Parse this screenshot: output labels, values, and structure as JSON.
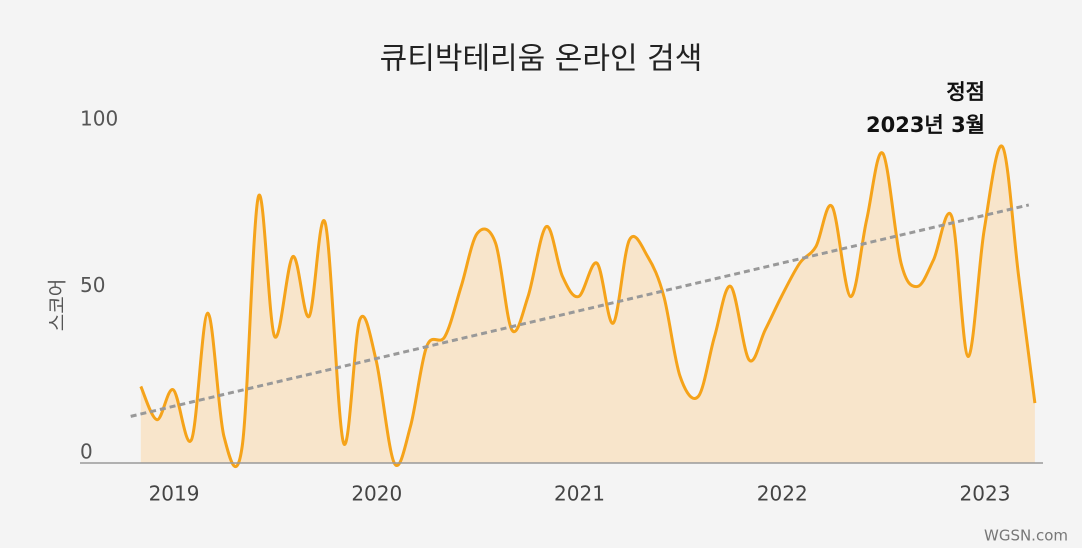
{
  "chart_data": {
    "type": "area",
    "title": "큐티박테리움 온라인 검색",
    "y_label": "스코어",
    "annotation": [
      "정점",
      "2023년 3월"
    ],
    "source": "WGSN.com",
    "color": "#f5a31a",
    "fill_color": "#f8e5cb",
    "x": [
      2018.92,
      2019.0,
      2019.08,
      2019.17,
      2019.25,
      2019.33,
      2019.42,
      2019.5,
      2019.58,
      2019.67,
      2019.75,
      2019.83,
      2019.92,
      2020.0,
      2020.08,
      2020.17,
      2020.25,
      2020.33,
      2020.42,
      2020.5,
      2020.58,
      2020.67,
      2020.75,
      2020.83,
      2020.92,
      2021.0,
      2021.08,
      2021.17,
      2021.25,
      2021.33,
      2021.42,
      2021.5,
      2021.58,
      2021.67,
      2021.75,
      2021.83,
      2021.92,
      2022.0,
      2022.08,
      2022.17,
      2022.25,
      2022.33,
      2022.42,
      2022.5,
      2022.58,
      2022.67,
      2022.75,
      2022.83,
      2022.92,
      2023.0,
      2023.08,
      2023.17,
      2023.25,
      2023.33
    ],
    "values": [
      23,
      13,
      22,
      7,
      45,
      8,
      5,
      80,
      38,
      62,
      44,
      72,
      6,
      43,
      31,
      0,
      11,
      35,
      38,
      53,
      69,
      66,
      40,
      50,
      71,
      56,
      50,
      60,
      42,
      67,
      62,
      50,
      26,
      20,
      38,
      53,
      31,
      40,
      50,
      60,
      65,
      77,
      50,
      73,
      93,
      60,
      53,
      61,
      74,
      32,
      70,
      95,
      56,
      18
    ],
    "trendline": {
      "x": [
        2018.87,
        2023.3
      ],
      "values": [
        14,
        77.5
      ],
      "color": "#999999"
    },
    "xlim": [
      2018.62,
      2023.37
    ],
    "ylim": [
      0,
      100
    ],
    "xticks": [
      2019,
      2020,
      2021,
      2022,
      2023
    ],
    "yticks": [
      0,
      50,
      100
    ]
  }
}
